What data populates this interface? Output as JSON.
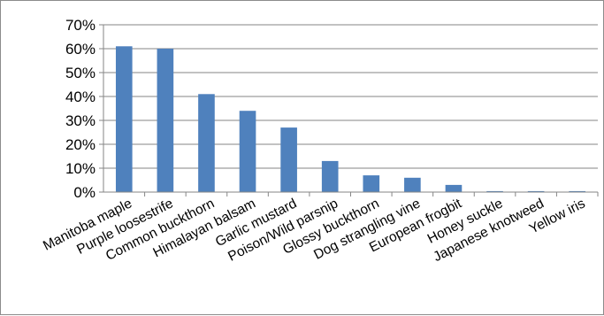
{
  "chart_data": {
    "type": "bar",
    "title": "",
    "xlabel": "",
    "ylabel": "",
    "categories": [
      "Manitoba maple",
      "Purple loosestrife",
      "Common buckthorn",
      "Himalayan balsam",
      "Garlic mustard",
      "Poison/Wild parsnip",
      "Glossy buckthorn",
      "Dog strangling vine",
      "European frogbit",
      "Honey suckle",
      "Japanese knotweed",
      "Yellow iris"
    ],
    "values": [
      61,
      60,
      41,
      34,
      27,
      13,
      7,
      6,
      3,
      0.4,
      0.4,
      0.4
    ],
    "ylim": [
      0,
      70
    ],
    "yticks": [
      "0%",
      "10%",
      "20%",
      "30%",
      "40%",
      "50%",
      "60%",
      "70%"
    ],
    "ytick_values": [
      0,
      10,
      20,
      30,
      40,
      50,
      60,
      70
    ],
    "gridlines": true,
    "legend": "none",
    "bar_color": "#4f81bd",
    "grid_color": "#868686"
  }
}
